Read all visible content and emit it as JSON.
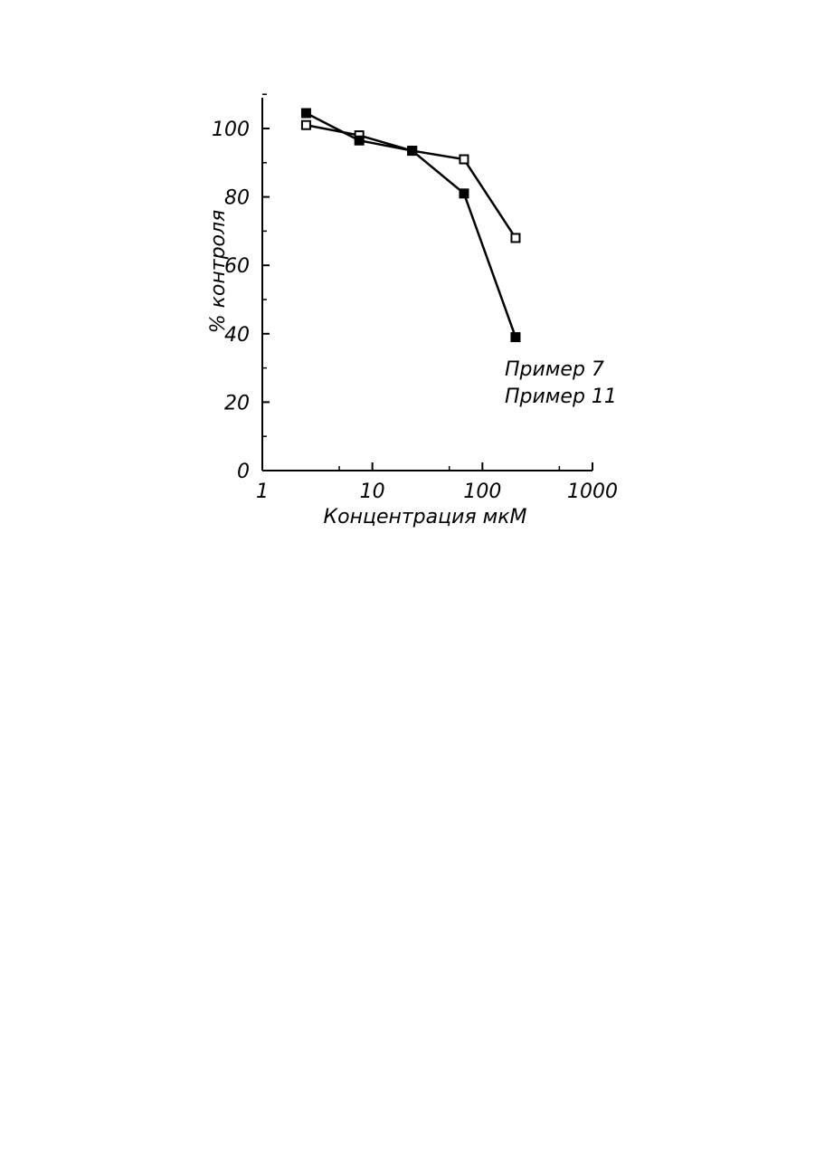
{
  "chart_data": {
    "type": "line",
    "xscale": "log",
    "xlim": [
      1,
      1000
    ],
    "ylim": [
      0,
      110
    ],
    "x_ticks": [
      "1",
      "10",
      "100",
      "1000"
    ],
    "y_ticks": [
      "0",
      "20",
      "40",
      "60",
      "80",
      "100"
    ],
    "xlabel": "Концентрация мкМ",
    "ylabel": "% контроля",
    "grid": false,
    "legend_placement": "right",
    "series": [
      {
        "name": "Пример 7",
        "marker": "open-square",
        "x": [
          2.5,
          7.6,
          23,
          68,
          200
        ],
        "y": [
          101,
          98,
          93.5,
          91,
          68
        ]
      },
      {
        "name": "Пример 11",
        "marker": "filled-square",
        "x": [
          2.5,
          7.6,
          23,
          68,
          200
        ],
        "y": [
          104.5,
          96.5,
          93.5,
          81,
          39
        ]
      }
    ]
  }
}
